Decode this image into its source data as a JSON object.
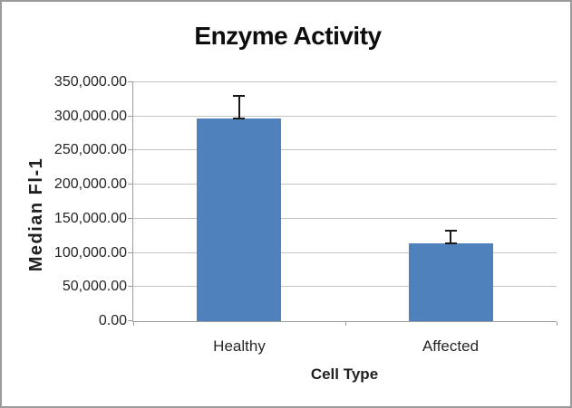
{
  "chart": {
    "colors": {
      "bar": "#4F81BD",
      "gridline": "#c3c3c3",
      "axis": "#9b9b9b",
      "error_bar": "#1a1a1a",
      "text": "#262626",
      "frame_border": "#9b9b9b",
      "background": "#ffffff"
    }
  },
  "chart_data": {
    "type": "bar",
    "title": "Enzyme Activity",
    "xlabel": "Cell Type",
    "ylabel": "Median Fl-1",
    "categories": [
      "Healthy",
      "Affected"
    ],
    "values": [
      297000,
      114000
    ],
    "errors_plus": [
      32000,
      17000
    ],
    "ylim": [
      0,
      350000
    ],
    "ytick_step": 50000,
    "yticks": [
      {
        "value": 0,
        "label": "0.00"
      },
      {
        "value": 50000,
        "label": "50,000.00"
      },
      {
        "value": 100000,
        "label": "100,000.00"
      },
      {
        "value": 150000,
        "label": "150,000.00"
      },
      {
        "value": 200000,
        "label": "200,000.00"
      },
      {
        "value": 250000,
        "label": "250,000.00"
      },
      {
        "value": 300000,
        "label": "300,000.00"
      },
      {
        "value": 350000,
        "label": "350,000.00"
      }
    ],
    "grid": true,
    "legend": false
  }
}
